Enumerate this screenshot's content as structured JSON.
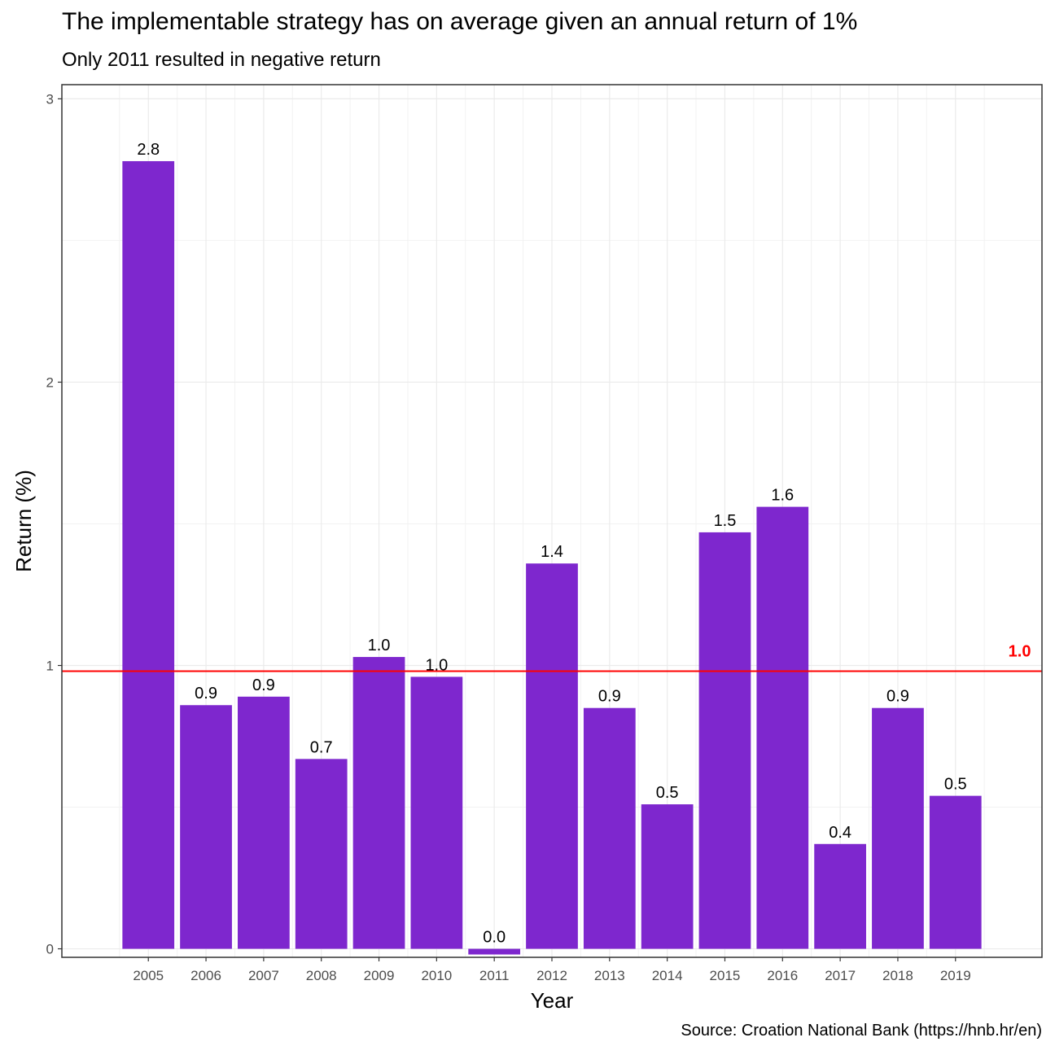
{
  "chart_data": {
    "type": "bar",
    "title": "The implementable strategy has on average given an annual return of 1%",
    "subtitle": "Only 2011 resulted in negative return",
    "caption": "Source: Croation National Bank (https://hnb.hr/en)",
    "xlabel": "Year",
    "ylabel": "Return (%)",
    "categories": [
      "2005",
      "2006",
      "2007",
      "2008",
      "2009",
      "2010",
      "2011",
      "2012",
      "2013",
      "2014",
      "2015",
      "2016",
      "2017",
      "2018",
      "2019"
    ],
    "values": [
      2.78,
      0.86,
      0.89,
      0.67,
      1.03,
      0.96,
      -0.02,
      1.36,
      0.85,
      0.51,
      1.47,
      1.56,
      0.37,
      0.85,
      0.54
    ],
    "data_labels": [
      "2.8",
      "0.9",
      "0.9",
      "0.7",
      "1.0",
      "1.0",
      "0.0",
      "1.4",
      "0.9",
      "0.5",
      "1.5",
      "1.6",
      "0.4",
      "0.9",
      "0.5"
    ],
    "ylim": [
      -0.03,
      3.05
    ],
    "yticks": [
      0,
      1,
      2,
      3
    ],
    "grid": true,
    "bar_color": "#7E27CE",
    "reference_line": {
      "value": 0.98,
      "label": "1.0",
      "color": "#FF0000"
    }
  }
}
